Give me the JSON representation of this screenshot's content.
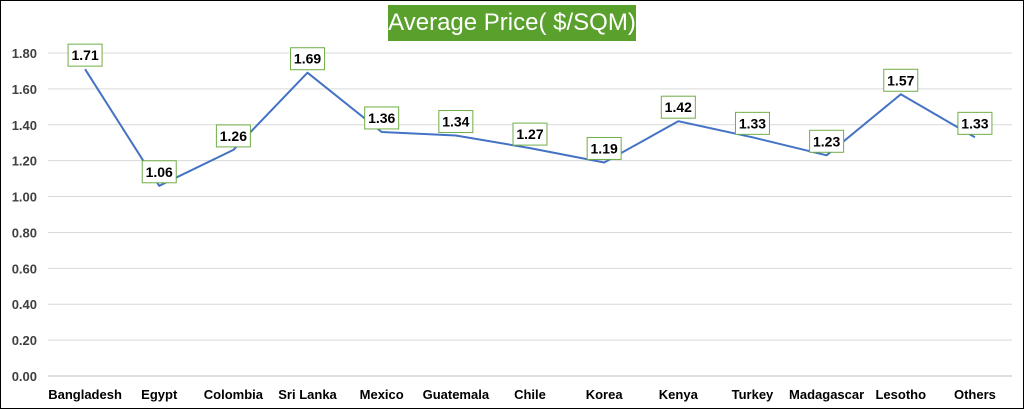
{
  "chart_data": {
    "type": "line",
    "title": "Average Price( $/SQM)",
    "xlabel": "",
    "ylabel": "",
    "categories": [
      "Bangladesh",
      "Egypt",
      "Colombia",
      "Sri Lanka",
      "Mexico",
      "Guatemala",
      "Chile",
      "Korea",
      "Kenya",
      "Turkey",
      "Madagascar",
      "Lesotho",
      "Others"
    ],
    "series": [
      {
        "values": [
          1.71,
          1.06,
          1.26,
          1.69,
          1.36,
          1.34,
          1.27,
          1.19,
          1.42,
          1.33,
          1.23,
          1.57,
          1.33
        ],
        "data_labels": [
          "1.71",
          "1.06",
          "1.26",
          "1.69",
          "1.36",
          "1.34",
          "1.27",
          "1.19",
          "1.42",
          "1.33",
          "1.23",
          "1.57",
          "1.33"
        ],
        "color": "#4472c4"
      }
    ],
    "ylim": [
      0,
      1.8
    ],
    "yticks": [
      "0.00",
      "0.20",
      "0.40",
      "0.60",
      "0.80",
      "1.00",
      "1.20",
      "1.40",
      "1.60",
      "1.80"
    ],
    "grid": true,
    "legend": "none",
    "title_background": "#5aa02c",
    "label_border_color": "#70ad47"
  }
}
